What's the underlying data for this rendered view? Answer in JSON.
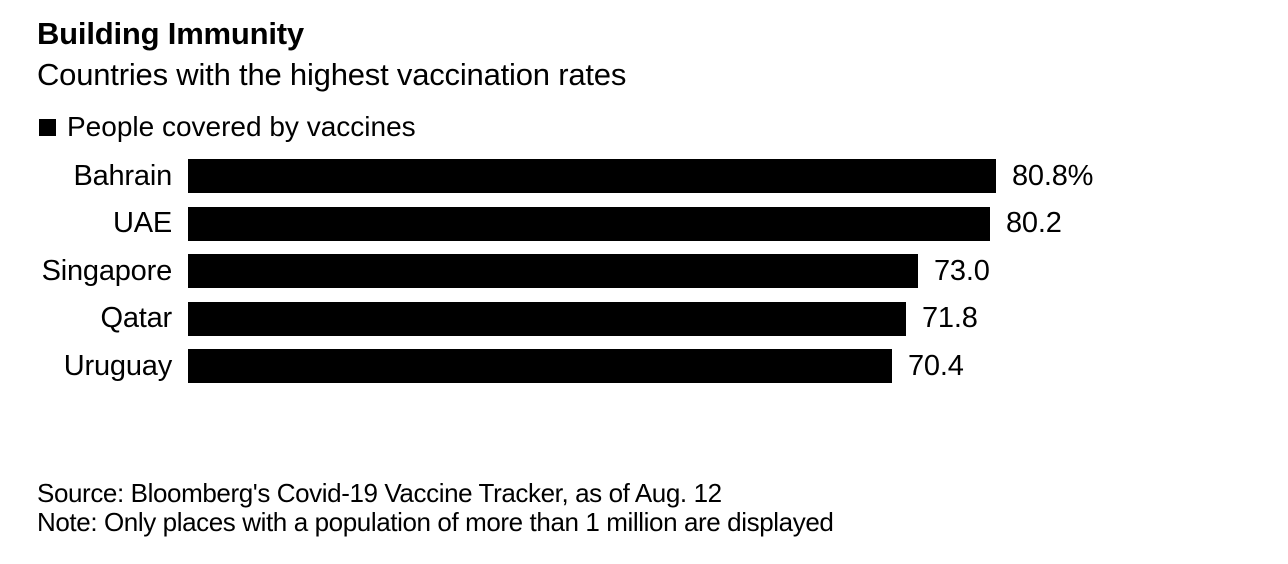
{
  "chart_data": {
    "type": "bar",
    "orientation": "horizontal",
    "title": "Building Immunity",
    "subtitle": "Countries with the highest vaccination rates",
    "legend": [
      {
        "label": "People covered by vaccines",
        "color": "#000000"
      }
    ],
    "categories": [
      "Bahrain",
      "UAE",
      "Singapore",
      "Qatar",
      "Uruguay"
    ],
    "values": [
      80.8,
      80.2,
      73.0,
      71.8,
      70.4
    ],
    "value_labels": [
      "80.8%",
      "80.2",
      "73.0",
      "71.8",
      "70.4"
    ],
    "xlim": [
      0,
      100
    ],
    "grid": false,
    "legend_position": "top-left",
    "bar_color": "#000000",
    "background_color": "#ffffff",
    "source": "Source: Bloomberg's Covid-19 Vaccine Tracker, as of Aug. 12",
    "note": "Note: Only places with a population of more than 1 million are displayed"
  }
}
